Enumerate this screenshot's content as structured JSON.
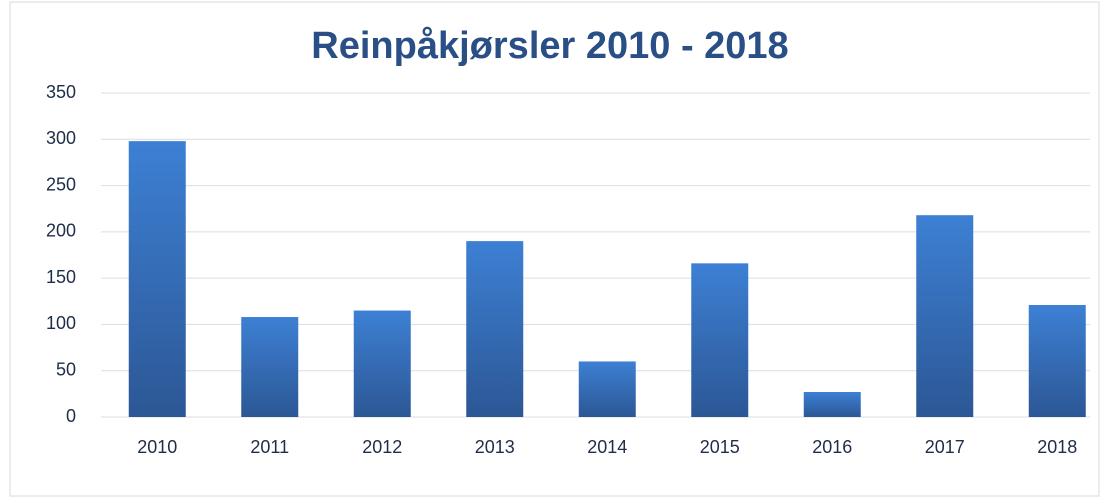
{
  "chart_data": {
    "type": "bar",
    "title": "Reinpåkjørsler 2010 - 2018",
    "categories": [
      "2010",
      "2011",
      "2012",
      "2013",
      "2014",
      "2015",
      "2016",
      "2017",
      "2018"
    ],
    "values": [
      298,
      108,
      115,
      190,
      60,
      166,
      27,
      218,
      121
    ],
    "color": "#3d80d4",
    "ylim": [
      0,
      350
    ],
    "yticks": [
      0,
      50,
      100,
      150,
      200,
      250,
      300,
      350
    ],
    "grid": true
  }
}
